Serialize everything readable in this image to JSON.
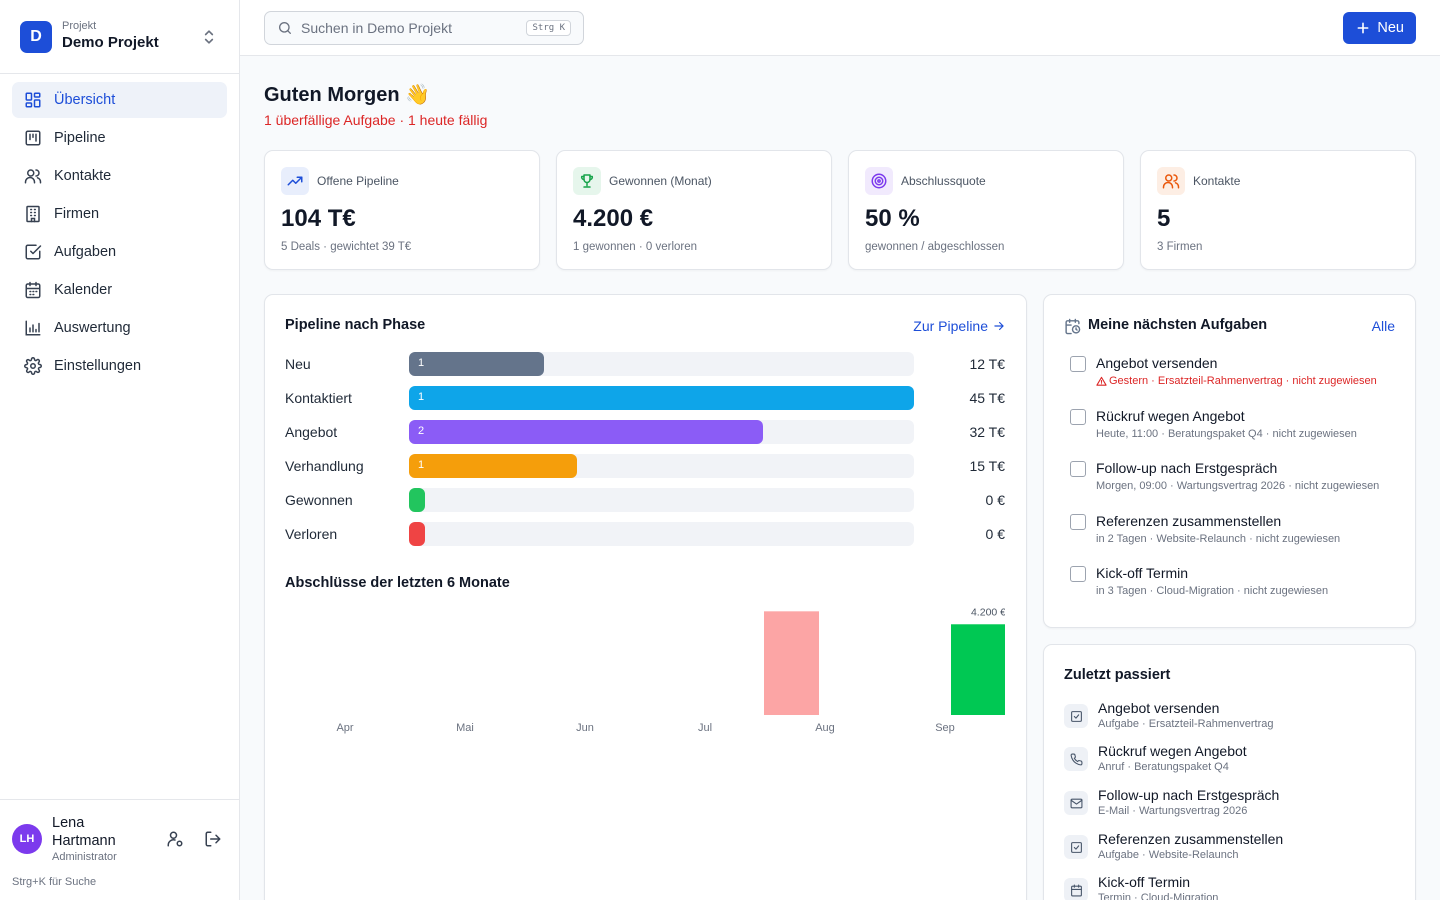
{
  "project": {
    "label": "Projekt",
    "name": "Demo Projekt",
    "initial": "D"
  },
  "nav": [
    {
      "label": "Übersicht",
      "icon": "dashboard-icon",
      "active": true
    },
    {
      "label": "Pipeline",
      "icon": "kanban-icon"
    },
    {
      "label": "Kontakte",
      "icon": "users-icon"
    },
    {
      "label": "Firmen",
      "icon": "building-icon"
    },
    {
      "label": "Aufgaben",
      "icon": "check-square-icon"
    },
    {
      "label": "Kalender",
      "icon": "calendar-icon"
    },
    {
      "label": "Auswertung",
      "icon": "bar-chart-icon"
    },
    {
      "label": "Einstellungen",
      "icon": "gear-icon"
    }
  ],
  "user": {
    "initials": "LH",
    "name": "Lena Hartmann",
    "role": "Administrator"
  },
  "shortcut_hint": "Strg+K für Suche",
  "search": {
    "placeholder": "Suchen in Demo Projekt",
    "shortcut": "Strg K"
  },
  "new_button": "Neu",
  "greeting": "Guten Morgen 👋",
  "due_summary": "1 überfällige Aufgabe · 1 heute fällig",
  "kpis": [
    {
      "label": "Offene Pipeline",
      "value": "104 T€",
      "sub": "5 Deals · gewichtet 39 T€",
      "icon": "trending-up-icon",
      "color": "#1d4ed8",
      "bg": "#e8eefc"
    },
    {
      "label": "Gewonnen (Monat)",
      "value": "4.200 €",
      "sub": "1 gewonnen · 0 verloren",
      "icon": "trophy-icon",
      "color": "#16a34a",
      "bg": "#e6f6ec"
    },
    {
      "label": "Abschlussquote",
      "value": "50 %",
      "sub": "gewonnen / abgeschlossen",
      "icon": "target-icon",
      "color": "#7c3aed",
      "bg": "#f1eafd"
    },
    {
      "label": "Kontakte",
      "value": "5",
      "sub": "3 Firmen",
      "icon": "users-icon",
      "color": "#ea580c",
      "bg": "#fdeee4"
    }
  ],
  "pipeline": {
    "title": "Pipeline nach Phase",
    "link": "Zur Pipeline",
    "phases": [
      {
        "label": "Neu",
        "count": "1",
        "value": "12 T€",
        "fill": 0.267,
        "color": "#64748b"
      },
      {
        "label": "Kontaktiert",
        "count": "1",
        "value": "45 T€",
        "fill": 1.0,
        "color": "#0ea5e9"
      },
      {
        "label": "Angebot",
        "count": "2",
        "value": "32 T€",
        "fill": 0.7,
        "color": "#8b5cf6"
      },
      {
        "label": "Verhandlung",
        "count": "1",
        "value": "15 T€",
        "fill": 0.333,
        "color": "#f59e0b"
      },
      {
        "label": "Gewonnen",
        "count": "",
        "value": "0 €",
        "fill": 0.0,
        "color": "#22c55e"
      },
      {
        "label": "Verloren",
        "count": "",
        "value": "0 €",
        "fill": 0.0,
        "color": "#ef4444"
      }
    ]
  },
  "closures": {
    "title": "Abschlüsse der letzten 6 Monate",
    "chart_data": {
      "type": "bar",
      "categories": [
        "Apr",
        "Mai",
        "Jun",
        "Jul",
        "Aug",
        "Sep"
      ],
      "series": [
        {
          "values": [
            0,
            0,
            0,
            0,
            4800,
            0
          ],
          "color": "#fca5a5"
        },
        {
          "values": [
            0,
            0,
            0,
            0,
            0,
            4200
          ],
          "color": "#00c853"
        }
      ],
      "data_labels": [
        {
          "category": "Sep",
          "text": "4.200 €"
        }
      ],
      "ylim": [
        0,
        5000
      ],
      "grid": false
    }
  },
  "tasks": {
    "title": "Meine nächsten Aufgaben",
    "link": "Alle",
    "items": [
      {
        "title": "Angebot versenden",
        "meta": "Gestern · Ersatzteil-Rahmenvertrag · nicht zugewiesen",
        "overdue": true
      },
      {
        "title": "Rückruf wegen Angebot",
        "meta": "Heute, 11:00 · Beratungspaket Q4 · nicht zugewiesen"
      },
      {
        "title": "Follow-up nach Erstgespräch",
        "meta": "Morgen, 09:00 · Wartungsvertrag 2026 · nicht zugewiesen"
      },
      {
        "title": "Referenzen zusammenstellen",
        "meta": "in 2 Tagen · Website-Relaunch · nicht zugewiesen"
      },
      {
        "title": "Kick-off Termin",
        "meta": "in 3 Tagen · Cloud-Migration · nicht zugewiesen"
      }
    ]
  },
  "activity": {
    "title": "Zuletzt passiert",
    "items": [
      {
        "title": "Angebot versenden",
        "meta": "Aufgabe · Ersatzteil-Rahmenvertrag",
        "icon": "check-square-icon"
      },
      {
        "title": "Rückruf wegen Angebot",
        "meta": "Anruf · Beratungspaket Q4",
        "icon": "phone-icon"
      },
      {
        "title": "Follow-up nach Erstgespräch",
        "meta": "E-Mail · Wartungsvertrag 2026",
        "icon": "mail-icon"
      },
      {
        "title": "Referenzen zusammenstellen",
        "meta": "Aufgabe · Website-Relaunch",
        "icon": "check-square-icon"
      },
      {
        "title": "Kick-off Termin",
        "meta": "Termin · Cloud-Migration",
        "icon": "calendar-icon"
      }
    ]
  }
}
